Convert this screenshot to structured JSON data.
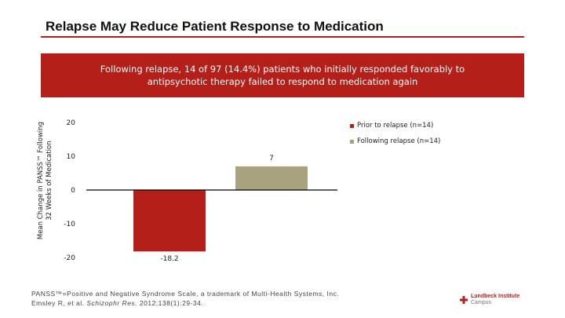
{
  "slide": {
    "title": "Relapse May Reduce Patient Response to Medication",
    "banner_text": "Following relapse, 14 of 97 (14.4%) patients who initially responded favorably to antipsychotic therapy failed to respond to medication again"
  },
  "chart_data": {
    "type": "bar",
    "categories": [
      "Prior to relapse (n=14)",
      "Following relapse (n=14)"
    ],
    "values": [
      -18.2,
      7
    ],
    "value_labels": [
      "-18.2",
      "7"
    ],
    "colors": [
      "#b51f1a",
      "#a8a27e"
    ],
    "ylabel_line1": "Mean Change in PANSS™ Following",
    "ylabel_line2": "32 Weeks of Medication",
    "ylim": [
      -20,
      20
    ],
    "yticks": [
      20,
      10,
      0,
      -10,
      -20
    ],
    "ytick_labels": [
      "20",
      "10",
      "0",
      "-10",
      "-20"
    ],
    "legend": [
      {
        "label": "Prior to relapse (n=14)",
        "color": "#b51f1a"
      },
      {
        "label": "Following relapse (n=14)",
        "color": "#a8a27e"
      }
    ]
  },
  "footnote": {
    "line1": "PANSS™=Positive and Negative Syndrome Scale, a trademark of Multi-Health Systems, Inc.",
    "line2_prefix": "Emsley R, et al. ",
    "line2_journal": "Schizophr Res.",
    "line2_suffix": " 2012;138(1):29-34."
  },
  "logo": {
    "brand": "Lundbeck Institute",
    "sub": "Campus"
  }
}
